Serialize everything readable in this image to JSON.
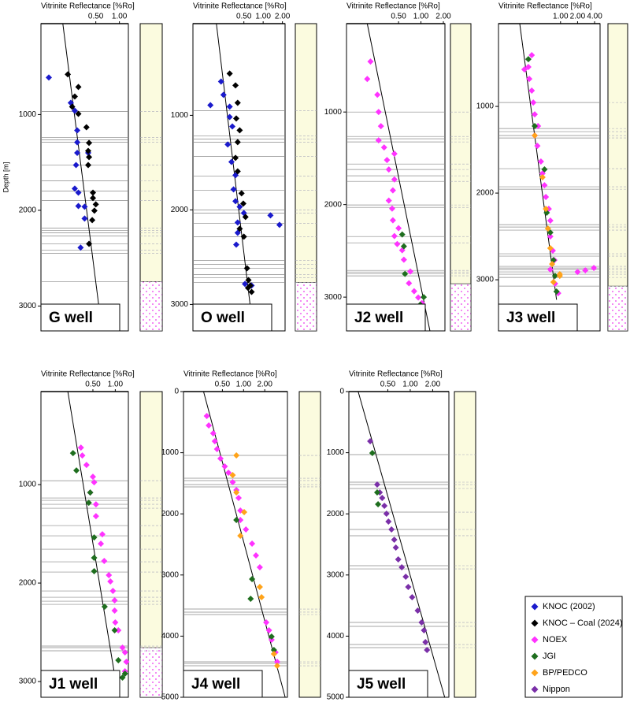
{
  "chart_data": [
    {
      "type": "scatter",
      "title": "Vitrinite Reflectance [%Ro]",
      "well_label": "G well",
      "ylabel": "Depth [m]",
      "xscale": "log",
      "xlim": [
        0.1,
        1.3
      ],
      "xticks": [
        {
          "value": 0.5,
          "label": "0.50"
        },
        {
          "value": 1.0,
          "label": "1.00"
        }
      ],
      "ylim": [
        50,
        3260
      ],
      "yticks": [
        1000,
        2000,
        3000
      ],
      "series": [
        {
          "name": "KNOC (2002)",
          "color": "#1a1acc",
          "x": [
            0.126,
            0.24,
            0.27,
            0.29,
            0.29,
            0.28,
            0.27,
            0.3,
            0.3,
            0.36,
            0.36,
            0.32,
            0.29,
            0.4
          ],
          "values": [
            613,
            877,
            959,
            1165,
            1400,
            1527,
            1773,
            1815,
            1955,
            1963,
            2086,
            2390,
            1290,
            1400
          ]
        },
        {
          "name": "KNOC – Coal (2024)",
          "color": "#000000",
          "x": [
            0.22,
            0.3,
            0.27,
            0.25,
            0.3,
            0.38,
            0.41,
            0.4,
            0.41,
            0.4,
            0.46,
            0.46,
            0.5,
            0.48,
            0.45,
            0.41
          ],
          "values": [
            580,
            712,
            811,
            918,
            992,
            1132,
            1296,
            1379,
            1444,
            1527,
            1815,
            1872,
            1938,
            2004,
            2103,
            2350
          ]
        }
      ],
      "trend": {
        "x": [
          0.19,
          0.6
        ],
        "values": [
          50,
          3260
        ]
      },
      "horizons": [
        967,
        1239,
        1264,
        1288,
        1527,
        1691,
        1798,
        1897,
        2185,
        2210,
        2235,
        2267,
        2350,
        2416,
        2449,
        2745
      ],
      "hatch_from": 2745
    },
    {
      "type": "scatter",
      "title": "Vitrinite Reflectance [%Ro]",
      "well_label": "O well",
      "xscale": "log",
      "xlim": [
        0.08,
        2.2
      ],
      "xticks": [
        {
          "value": 0.5,
          "label": "0.50"
        },
        {
          "value": 1.0,
          "label": "1.00"
        },
        {
          "value": 2.0,
          "label": "2.00"
        }
      ],
      "ylim": [
        30,
        3280
      ],
      "yticks": [
        1000,
        2000,
        3000
      ],
      "series": [
        {
          "name": "KNOC (2002)",
          "color": "#1a1acc",
          "x": [
            0.15,
            0.22,
            0.24,
            0.3,
            0.3,
            0.33,
            0.28,
            0.32,
            0.37,
            0.345,
            0.37,
            0.43,
            0.5,
            0.4,
            0.4,
            0.38,
            1.8,
            1.3,
            0.52,
            0.66
          ],
          "values": [
            892,
            642,
            783,
            908,
            1017,
            1117,
            1308,
            1492,
            1633,
            1783,
            1908,
            1967,
            2033,
            2133,
            2242,
            2367,
            2158,
            2058,
            2783,
            2800
          ]
        },
        {
          "name": "KNOC – Coal (2024)",
          "color": "#000000",
          "x": [
            0.3,
            0.37,
            0.4,
            0.38,
            0.43,
            0.4,
            0.37,
            0.4,
            0.46,
            0.49,
            0.53,
            0.43,
            0.5,
            0.56,
            0.59,
            0.63,
            0.66,
            0.58
          ],
          "values": [
            558,
            683,
            867,
            1033,
            1158,
            1283,
            1450,
            1592,
            1825,
            1933,
            2075,
            2200,
            2283,
            2617,
            2742,
            2800,
            2867,
            2825
          ]
        }
      ],
      "trend": {
        "x": [
          0.186,
          0.7
        ],
        "values": [
          30,
          3280
        ]
      },
      "horizons": [
        950,
        1217,
        1250,
        1283,
        1433,
        1642,
        1792,
        2000,
        2033,
        2142,
        2283,
        2533,
        2575,
        2617,
        2683,
        2717,
        2767
      ],
      "hatch_from": 2767
    },
    {
      "type": "scatter",
      "title": "Vitrinite Reflectance [%Ro]",
      "well_label": "J2 well",
      "xscale": "log",
      "xlim": [
        0.1,
        2.1
      ],
      "xticks": [
        {
          "value": 0.5,
          "label": "0.50"
        },
        {
          "value": 1.0,
          "label": "1.00"
        },
        {
          "value": 2.0,
          "label": "2.00"
        }
      ],
      "ylim": [
        45,
        3365
      ],
      "yticks": [
        1000,
        2000,
        3000
      ],
      "series": [
        {
          "name": "NOEX",
          "color": "#ff33ff",
          "x": [
            0.21,
            0.19,
            0.26,
            0.27,
            0.29,
            0.27,
            0.32,
            0.44,
            0.35,
            0.37,
            0.44,
            0.42,
            0.37,
            0.41,
            0.42,
            0.5,
            0.44,
            0.48,
            0.56,
            0.59,
            0.72,
            0.69,
            0.81,
            0.92,
            1.03,
            0.98
          ],
          "values": [
            455,
            643,
            813,
            1000,
            1153,
            1306,
            1383,
            1451,
            1519,
            1621,
            1728,
            1847,
            1957,
            2043,
            2170,
            2255,
            2340,
            2426,
            2494,
            2596,
            2723,
            2850,
            2936,
            3004,
            3064,
            3106
          ]
        },
        {
          "name": "JGI",
          "color": "#1e6e1e",
          "x": [
            0.56,
            0.59,
            0.61,
            1.09,
            0.98,
            0.87
          ],
          "values": [
            2323,
            2451,
            2749,
            3000,
            3081,
            3106
          ]
        }
      ],
      "trend": {
        "x": [
          0.19,
          1.32
        ],
        "values": [
          45,
          3365
        ]
      },
      "horizons": [
        1000,
        1264,
        1289,
        1323,
        1562,
        1621,
        1689,
        1749,
        2004,
        2030,
        2345,
        2413,
        2711,
        2728,
        2745,
        2770
      ],
      "hatch_from": 2855
    },
    {
      "type": "scatter",
      "title": "Vitrinite Reflectance [%Ro]",
      "well_label": "J3 well",
      "xscale": "log",
      "xlim": [
        0.08,
        5
      ],
      "xticks": [
        {
          "value": 1.0,
          "label": "1.00"
        },
        {
          "value": 2.0,
          "label": "2.00"
        },
        {
          "value": 4.0,
          "label": "4.00"
        }
      ],
      "ylim": [
        45,
        3590
      ],
      "yticks": [
        1000,
        2000,
        3000
      ],
      "series": [
        {
          "name": "NOEX",
          "color": "#ff33ff",
          "x": [
            0.31,
            0.27,
            0.23,
            0.28,
            0.31,
            0.33,
            0.35,
            0.4,
            0.35,
            0.39,
            0.45,
            0.48,
            0.52,
            0.55,
            0.62,
            0.66,
            0.66,
            0.73,
            0.78,
            0.66,
            2.74,
            3.88,
            2.0,
            0.8,
            0.91
          ],
          "values": [
            409,
            545,
            573,
            682,
            818,
            955,
            1091,
            1227,
            1336,
            1455,
            1636,
            1773,
            1909,
            2045,
            2182,
            2318,
            2500,
            2664,
            2773,
            2882,
            2891,
            2864,
            2909,
            3045,
            3155
          ]
        },
        {
          "name": "JGI",
          "color": "#1e6e1e",
          "x": [
            0.27,
            0.35,
            0.52,
            0.57,
            0.66,
            0.75,
            0.8,
            0.85
          ],
          "values": [
            455,
            1227,
            1727,
            2227,
            2455,
            2773,
            2955,
            3136
          ]
        },
        {
          "name": "BP/PEDCO",
          "color": "#ffa31a",
          "x": [
            0.35,
            0.48,
            0.55,
            0.6,
            0.66,
            0.71,
            0.97,
            0.75,
            0.97
          ],
          "values": [
            1336,
            1818,
            2182,
            2409,
            2636,
            2818,
            2955,
            3027,
            2936
          ]
        }
      ],
      "trend": {
        "x": [
          0.19,
          0.85
        ],
        "values": [
          45,
          3230
        ]
      },
      "horizons": [
        955,
        1255,
        1291,
        1336,
        1364,
        1718,
        1927,
        1955,
        2364,
        2391,
        2427,
        2700,
        2727,
        2845,
        2864,
        2882,
        2909,
        2936,
        2973,
        3073
      ],
      "hatch_from": 3073
    },
    {
      "type": "scatter",
      "title": "Vitrinite Reflectance [%Ro]",
      "well_label": "J1 well",
      "xscale": "log",
      "xlim": [
        0.1,
        1.5
      ],
      "xticks": [
        {
          "value": 0.5,
          "label": "0.50"
        },
        {
          "value": 1.0,
          "label": "1.00"
        }
      ],
      "ylim": [
        55,
        3160
      ],
      "yticks": [
        1000,
        2000,
        3000
      ],
      "series": [
        {
          "name": "NOEX",
          "color": "#ff33ff",
          "x": [
            0.345,
            0.36,
            0.41,
            0.5,
            0.52,
            0.46,
            0.55,
            0.55,
            0.67,
            0.64,
            0.71,
            0.82,
            0.86,
            0.93,
            0.98,
            0.98,
            1.0,
            1.1,
            1.25,
            1.35,
            1.41,
            1.35
          ],
          "values": [
            624,
            704,
            800,
            920,
            976,
            1080,
            1200,
            1320,
            1504,
            1600,
            1776,
            1920,
            1984,
            2080,
            2176,
            2280,
            2400,
            2480,
            2656,
            2704,
            2800,
            2896
          ]
        },
        {
          "name": "JGI",
          "color": "#1e6e1e",
          "x": [
            0.27,
            0.3,
            0.46,
            0.44,
            0.52,
            0.52,
            0.52,
            0.72,
            0.98,
            1.1,
            1.35,
            1.25
          ],
          "values": [
            680,
            856,
            1080,
            1184,
            1536,
            1744,
            1880,
            2240,
            2480,
            2784,
            2920,
            2960
          ]
        }
      ],
      "trend": {
        "x": [
          0.23,
          1.1
        ],
        "values": [
          55,
          3160
        ]
      },
      "horizons": [
        960,
        1136,
        1160,
        1200,
        1240,
        1416,
        1520,
        1656,
        1784,
        1888,
        2080,
        2144,
        2184,
        2216,
        2640,
        2656,
        2688
      ],
      "hatch_from": 2656
    },
    {
      "type": "scatter",
      "title": "Vitrinite Reflectance [%Ro]",
      "well_label": "J4 well",
      "xscale": "log",
      "xlim": [
        0.14,
        4.2
      ],
      "xticks": [
        {
          "value": 0.5,
          "label": "0.50"
        },
        {
          "value": 1.0,
          "label": "1.00"
        },
        {
          "value": 2.0,
          "label": "2.00"
        }
      ],
      "ylim": [
        0,
        5000
      ],
      "yticks": [
        0,
        1000,
        2000,
        3000,
        4000,
        5000
      ],
      "series": [
        {
          "name": "NOEX",
          "color": "#ff33ff",
          "x": [
            0.3,
            0.32,
            0.37,
            0.39,
            0.42,
            0.47,
            0.54,
            0.61,
            0.7,
            0.79,
            0.85,
            0.9,
            0.9,
            1.08,
            1.32,
            1.5,
            1.7,
            2.1,
            2.3,
            2.5,
            2.85,
            3.0
          ],
          "values": [
            400,
            554,
            683,
            812,
            941,
            1095,
            1224,
            1327,
            1482,
            1611,
            1740,
            1946,
            2100,
            2255,
            2487,
            2680,
            2874,
            3776,
            3905,
            4059,
            4265,
            4420
          ]
        },
        {
          "name": "JGI",
          "color": "#1e6e1e",
          "x": [
            0.79,
            1.32,
            1.26,
            2.5,
            2.7
          ],
          "values": [
            2100,
            3067,
            3389,
            4008,
            4227
          ]
        },
        {
          "name": "BP/PEDCO",
          "color": "#ffa31a",
          "x": [
            0.7,
            0.79,
            1.02,
            0.9,
            1.7,
            1.8,
            2.7,
            3.0,
            0.79
          ],
          "values": [
            1366,
            1649,
            1972,
            2358,
            3196,
            3363,
            4291,
            4485,
            1044
          ]
        }
      ],
      "trend": {
        "x": [
          0.27,
          3.9
        ],
        "values": [
          0,
          5000
        ]
      },
      "horizons": [
        1044,
        1418,
        1456,
        1521,
        1559,
        3557,
        3608,
        3647,
        4420,
        4446,
        4485
      ]
    },
    {
      "type": "scatter",
      "title": "Vitrinite Reflectance [%Ro]",
      "well_label": "J5 well",
      "xscale": "log",
      "xlim": [
        0.15,
        3.3
      ],
      "xticks": [
        {
          "value": 0.5,
          "label": "0.50"
        },
        {
          "value": 1.0,
          "label": "1.00"
        },
        {
          "value": 2.0,
          "label": "2.00"
        }
      ],
      "ylim": [
        0,
        5000
      ],
      "yticks": [
        0,
        1000,
        2000,
        3000,
        4000,
        5000
      ],
      "series": [
        {
          "name": "Nippon",
          "color": "#7a2fa8",
          "x": [
            0.29,
            0.36,
            0.39,
            0.42,
            0.45,
            0.48,
            0.51,
            0.56,
            0.61,
            0.64,
            0.69,
            0.77,
            0.87,
            0.94,
            1.06,
            1.26,
            1.42,
            1.53,
            1.6,
            1.68
          ],
          "values": [
            812,
            1521,
            1649,
            1740,
            1869,
            1997,
            2126,
            2255,
            2423,
            2552,
            2745,
            2874,
            3028,
            3196,
            3363,
            3582,
            3776,
            3905,
            4098,
            4227
          ]
        },
        {
          "name": "JGI",
          "color": "#1e6e1e",
          "x": [
            0.31,
            0.36,
            0.37
          ],
          "values": [
            1005,
            1649,
            1843
          ]
        }
      ],
      "trend": {
        "x": [
          0.2,
          2.9
        ],
        "values": [
          0,
          5000
        ]
      },
      "horizons": [
        1031,
        1482,
        1521,
        1585,
        1972,
        2255,
        2358,
        2848,
        2900,
        3776,
        3840,
        4137,
        4188
      ]
    }
  ],
  "legend": [
    {
      "name": "KNOC (2002)",
      "color": "#1a1acc"
    },
    {
      "name": "KNOC – Coal (2024)",
      "color": "#000000"
    },
    {
      "name": "NOEX",
      "color": "#ff33ff"
    },
    {
      "name": "JGI",
      "color": "#1e6e1e"
    },
    {
      "name": "BP/PEDCO",
      "color": "#ffa31a"
    },
    {
      "name": "Nippon",
      "color": "#7a2fa8"
    }
  ]
}
